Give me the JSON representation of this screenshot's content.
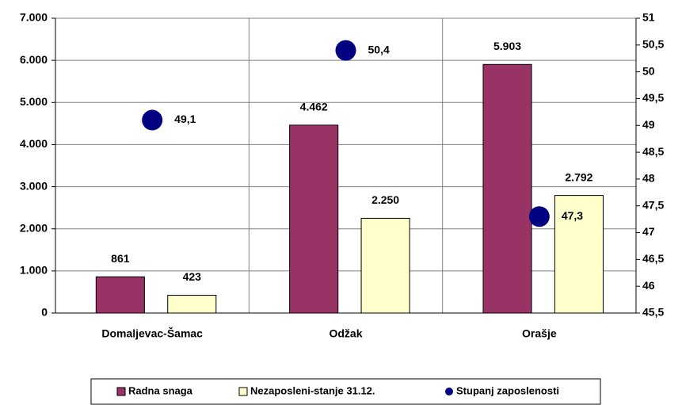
{
  "chart_data": {
    "type": "bar",
    "categories": [
      "Domaljevac-Šamac",
      "Odžak",
      "Orašje"
    ],
    "series": [
      {
        "name": "Radna snaga",
        "color": "#993366",
        "values": [
          861,
          4462,
          5903
        ],
        "value_labels": [
          "861",
          "4.462",
          "5.903"
        ]
      },
      {
        "name": "Nezaposleni-stanje 31.12.",
        "color": "#ffffcc",
        "values": [
          423,
          2250,
          2792
        ],
        "value_labels": [
          "423",
          "2.250",
          "2.792"
        ]
      },
      {
        "name": "Stupanj zaposlenosti",
        "color": "#000080",
        "type": "scatter",
        "axis": "y2",
        "values": [
          49.1,
          50.4,
          47.3
        ],
        "value_labels": [
          "49,1",
          "50,4",
          "47,3"
        ]
      }
    ],
    "ylim": [
      0,
      7000
    ],
    "yticks": [
      0,
      {
        "value": 1000,
        "label": "1.000"
      },
      {
        "value": 2000,
        "label": "2.000"
      },
      {
        "value": 3000,
        "label": "3.000"
      },
      {
        "value": 4000,
        "label": "4.000"
      },
      {
        "value": 5000,
        "label": "5.000"
      },
      {
        "value": 6000,
        "label": "6.000"
      },
      {
        "value": 7000,
        "label": "7.000"
      }
    ],
    "y2lim": [
      45.5,
      51
    ],
    "y2ticks": [
      {
        "value": 45.5,
        "label": "45,5"
      },
      46,
      {
        "value": 46.5,
        "label": "46,5"
      },
      47,
      {
        "value": 47.5,
        "label": "47,5"
      },
      48,
      {
        "value": 48.5,
        "label": "48,5"
      },
      49,
      {
        "value": 49.5,
        "label": "49,5"
      },
      50,
      {
        "value": 50.5,
        "label": "50,5"
      },
      51
    ],
    "grid": true,
    "legend": "bottom"
  }
}
